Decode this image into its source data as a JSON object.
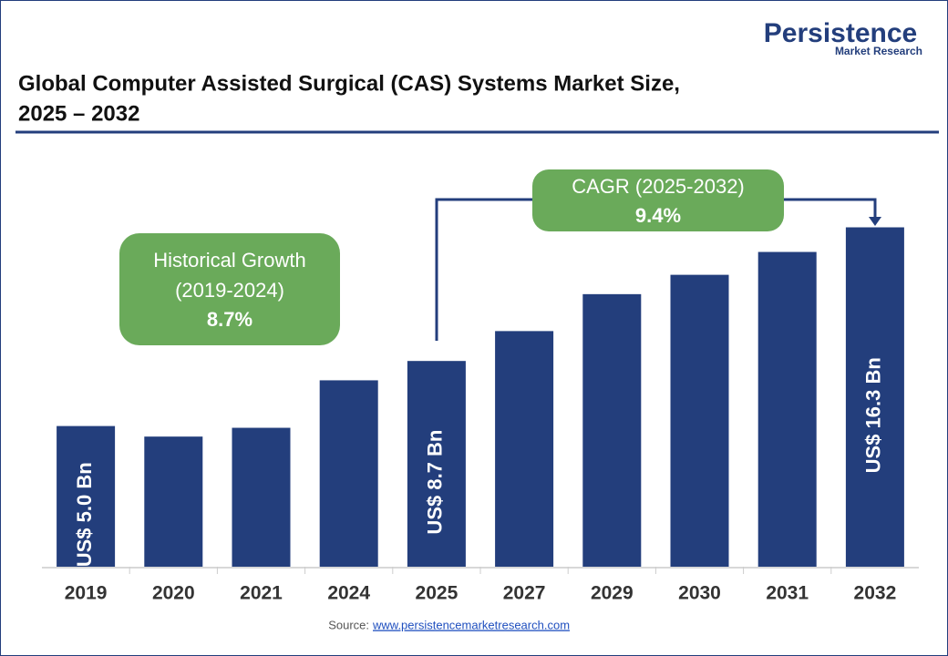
{
  "logo": {
    "name": "Persistence",
    "tagline": "Market Research"
  },
  "chart_data": {
    "type": "bar",
    "title": [
      "Global Computer Assisted Surgical (CAS) Systems Market Size,",
      "2025 – 2032"
    ],
    "categories": [
      "2019",
      "2020",
      "2021",
      "2024",
      "2025",
      "2027",
      "2029",
      "2030",
      "2031",
      "2032"
    ],
    "values": [
      5.0,
      4.4,
      4.9,
      7.6,
      8.7,
      10.4,
      12.5,
      13.6,
      14.9,
      16.3
    ],
    "value_labels": [
      "US$ 5.0 Bn",
      null,
      null,
      null,
      "US$ 8.7 Bn",
      null,
      null,
      null,
      null,
      "US$ 16.3 Bn"
    ],
    "color": "#233e7c",
    "ylim": [
      -3,
      17
    ],
    "annotations": [
      {
        "lines": [
          "Historical Growth",
          "(2019-2024)",
          "8.7%"
        ]
      },
      {
        "lines": [
          "CAGR (2025-2032)",
          "9.4%"
        ]
      }
    ],
    "source": {
      "label": "Source:",
      "link": "www.persistencemarketresearch.com"
    }
  }
}
